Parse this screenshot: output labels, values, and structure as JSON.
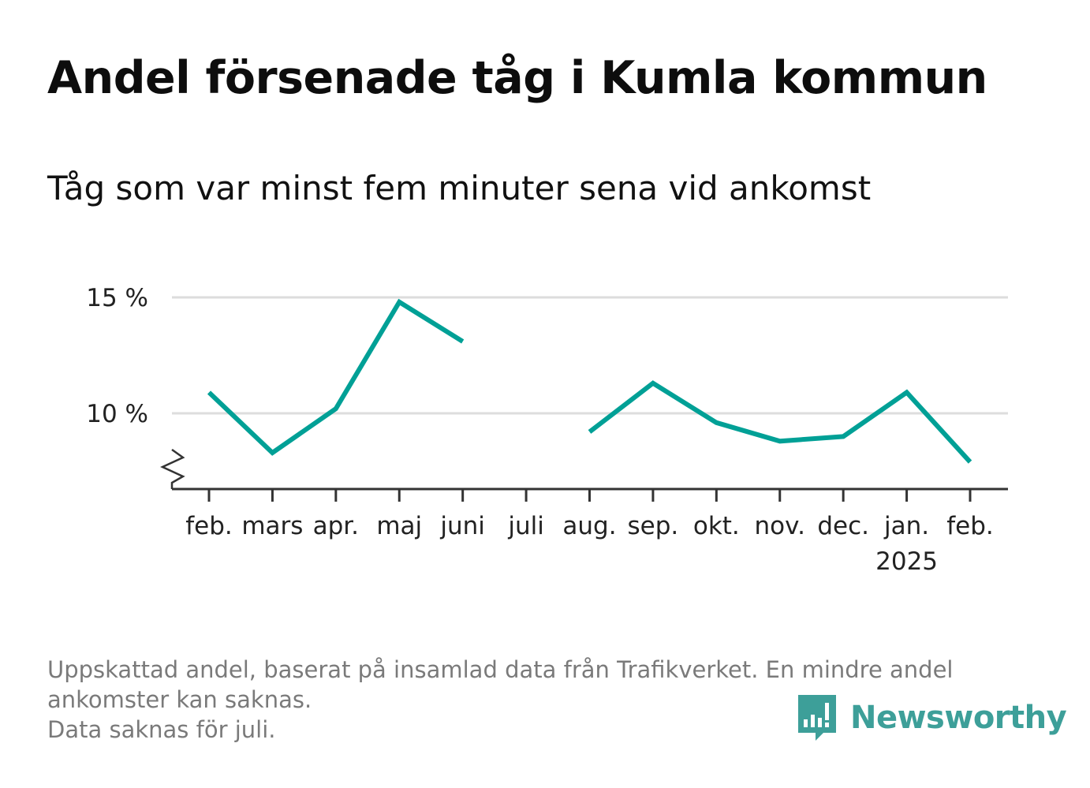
{
  "title": "Andel försenade tåg i Kumla kommun",
  "subtitle": "Tåg som var minst fem minuter sena vid ankomst",
  "footnote": {
    "line1": "Uppskattad andel, baserat på insamlad data från Trafikverket. En mindre andel",
    "line2": "ankomster kan saknas.",
    "line3": "Data saknas för juli."
  },
  "brand": {
    "name": "Newsworthy",
    "color": "#3d9f99",
    "icon": "newsworthy-logo-icon"
  },
  "colors": {
    "line": "#00a096",
    "grid": "#dddddd",
    "axis": "#333333",
    "tick_text": "#222222"
  },
  "chart_data": {
    "type": "line",
    "title": "Andel försenade tåg i Kumla kommun",
    "subtitle": "Tåg som var minst fem minuter sena vid ankomst",
    "categories": [
      "feb.",
      "mars",
      "apr.",
      "maj",
      "juni",
      "juli",
      "aug.",
      "sep.",
      "okt.",
      "nov.",
      "dec.",
      "jan.",
      "feb."
    ],
    "category_sublabels": [
      "",
      "",
      "",
      "",
      "",
      "",
      "",
      "",
      "",
      "",
      "",
      "2025",
      ""
    ],
    "series": [
      {
        "values": [
          10.9,
          8.3,
          10.2,
          14.8,
          13.1,
          null,
          9.2,
          11.3,
          9.6,
          8.8,
          9.0,
          10.9,
          7.9
        ]
      }
    ],
    "y_ticks": [
      {
        "value": 10,
        "label": "10 %"
      },
      {
        "value": 15,
        "label": "15 %"
      }
    ],
    "ylim": [
      6.7,
      15.8
    ],
    "y_axis_break": true,
    "grid": true,
    "legend": "none"
  }
}
